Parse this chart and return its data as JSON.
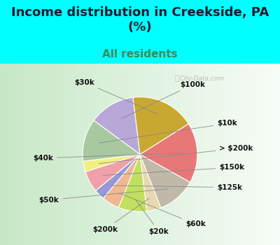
{
  "title": "Income distribution in Creekside, PA\n(%)",
  "subtitle": "All residents",
  "background_top": "#00FFFF",
  "background_chart_gradient_left": "#d4edd4",
  "background_chart_gradient_right": "#f0faf0",
  "labels": [
    "$100k",
    "$10k",
    "> $200k",
    "$150k",
    "$125k",
    "$60k",
    "$20k",
    "$200k",
    "$50k",
    "$40k",
    "$30k"
  ],
  "values": [
    13,
    12,
    3,
    6,
    3,
    5,
    8,
    4,
    11,
    17,
    18
  ],
  "colors": [
    "#b8a8d8",
    "#a8c8a0",
    "#f0f080",
    "#f0a0a8",
    "#9898d8",
    "#f0b890",
    "#c0e060",
    "#e8d8b0",
    "#c0b8a8",
    "#e87878",
    "#c8a830"
  ],
  "label_fontsize": 7.5,
  "title_fontsize": 13,
  "subtitle_fontsize": 11,
  "startangle": 97,
  "watermark": "City-Data.com"
}
